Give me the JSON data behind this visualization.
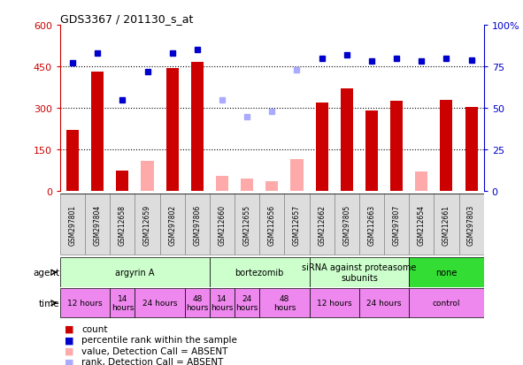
{
  "title": "GDS3367 / 201130_s_at",
  "samples": [
    "GSM297801",
    "GSM297804",
    "GSM212658",
    "GSM212659",
    "GSM297802",
    "GSM297806",
    "GSM212660",
    "GSM212655",
    "GSM212656",
    "GSM212657",
    "GSM212662",
    "GSM297805",
    "GSM212663",
    "GSM297807",
    "GSM212654",
    "GSM212661",
    "GSM297803"
  ],
  "count_values": [
    220,
    430,
    75,
    0,
    445,
    465,
    0,
    0,
    0,
    0,
    320,
    370,
    290,
    325,
    0,
    330,
    305
  ],
  "count_absent": [
    false,
    false,
    false,
    true,
    false,
    false,
    true,
    true,
    true,
    true,
    false,
    false,
    false,
    false,
    true,
    false,
    false
  ],
  "absent_count_values": [
    0,
    0,
    0,
    110,
    0,
    0,
    55,
    45,
    35,
    115,
    0,
    0,
    0,
    0,
    70,
    0,
    0
  ],
  "rank_values": [
    77,
    83,
    55,
    72,
    83,
    85,
    55,
    45,
    48,
    73,
    80,
    82,
    78,
    80,
    78,
    80,
    79
  ],
  "rank_absent": [
    false,
    false,
    false,
    false,
    false,
    false,
    true,
    true,
    true,
    true,
    false,
    false,
    false,
    false,
    false,
    false,
    false
  ],
  "ylim_left": [
    0,
    600
  ],
  "ylim_right": [
    0,
    100
  ],
  "yticks_left": [
    0,
    150,
    300,
    450,
    600
  ],
  "yticks_right": [
    0,
    25,
    50,
    75,
    100
  ],
  "color_count": "#cc0000",
  "color_count_absent": "#ffaaaa",
  "color_rank": "#0000cc",
  "color_rank_absent": "#aaaaff",
  "agent_groups": [
    {
      "label": "argyrin A",
      "start": 0,
      "end": 6,
      "color": "#ccffcc"
    },
    {
      "label": "bortezomib",
      "start": 6,
      "end": 10,
      "color": "#ccffcc"
    },
    {
      "label": "siRNA against proteasome\nsubunits",
      "start": 10,
      "end": 14,
      "color": "#ccffcc"
    },
    {
      "label": "none",
      "start": 14,
      "end": 17,
      "color": "#33dd33"
    }
  ],
  "time_groups": [
    {
      "label": "12 hours",
      "start": 0,
      "end": 2
    },
    {
      "label": "14\nhours",
      "start": 2,
      "end": 3
    },
    {
      "label": "24 hours",
      "start": 3,
      "end": 5
    },
    {
      "label": "48\nhours",
      "start": 5,
      "end": 6
    },
    {
      "label": "14\nhours",
      "start": 6,
      "end": 7
    },
    {
      "label": "24\nhours",
      "start": 7,
      "end": 8
    },
    {
      "label": "48\nhours",
      "start": 8,
      "end": 10
    },
    {
      "label": "12 hours",
      "start": 10,
      "end": 12
    },
    {
      "label": "24 hours",
      "start": 12,
      "end": 14
    },
    {
      "label": "control",
      "start": 14,
      "end": 17
    }
  ]
}
